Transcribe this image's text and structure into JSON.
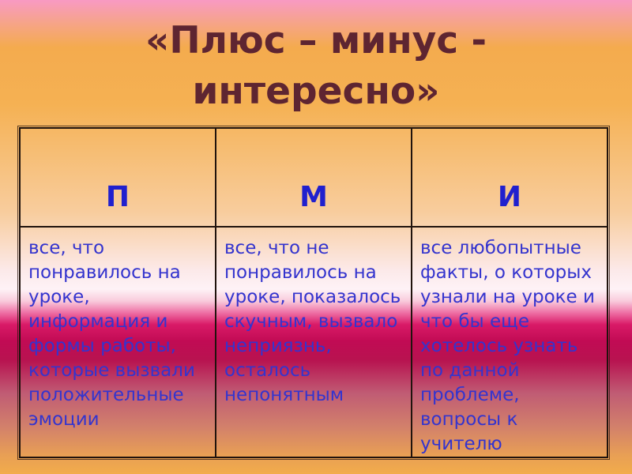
{
  "slide": {
    "title": "«Плюс – минус -\nинтересно»",
    "table": {
      "headers": [
        {
          "label": "П"
        },
        {
          "label": "М"
        },
        {
          "label": "И"
        }
      ],
      "cells": [
        "все, что\nпонравилось на\nуроке,\nинформация и\nформы работы,\nкоторые вызвали\nположительные\nэмоции",
        "все, что не\nпонравилось на\nуроке, показалось\nскучным, вызвало\nнеприязнь,\nосталось\nнепонятным",
        "все любопытные\nфакты, о которых\nузнали на уроке и\nчто бы еще\nхотелось узнать\nпо данной\nпроблеме,\nвопросы к\nучителю"
      ]
    },
    "colors": {
      "title_text": "#5E2531",
      "header_text": "#2020CE",
      "body_text": "#3434CE",
      "table_border": "#20130D",
      "bg_top_pink": "#F89AC3",
      "bg_orange": "#F4AB4E",
      "bg_light_band": "#FEF2F6",
      "bg_crimson": "#C10B54",
      "bg_bottom_orange": "#F2AC4B"
    }
  }
}
